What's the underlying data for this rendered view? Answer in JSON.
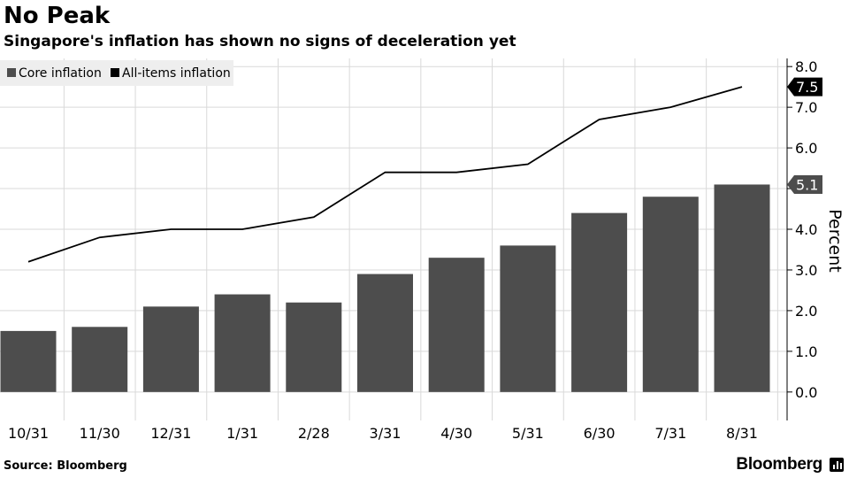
{
  "header": {
    "title": "No Peak",
    "subtitle": "Singapore's inflation has shown no signs of deceleration yet"
  },
  "footer": {
    "source": "Source: Bloomberg",
    "brand": "Bloomberg"
  },
  "colors": {
    "bar": "#4d4d4d",
    "line": "#000000",
    "grid": "#d9d9d9",
    "legend_bg": "#eeeeee"
  },
  "chart_data": {
    "type": "bar",
    "categories": [
      "10/31",
      "11/30",
      "12/31",
      "1/31",
      "2/28",
      "3/31",
      "4/30",
      "5/31",
      "6/30",
      "7/31",
      "8/31"
    ],
    "series": [
      {
        "name": "Core inflation",
        "type": "bar",
        "values": [
          1.5,
          1.6,
          2.1,
          2.4,
          2.2,
          2.9,
          3.3,
          3.6,
          4.4,
          4.8,
          5.1
        ]
      },
      {
        "name": "All-items inflation",
        "type": "line",
        "values": [
          3.2,
          3.8,
          4.0,
          4.0,
          4.3,
          5.4,
          5.4,
          5.6,
          6.7,
          7.0,
          7.5
        ]
      }
    ],
    "last_value_labels": [
      "7.5",
      "5.1"
    ],
    "ylabel": "Percent",
    "ylim": [
      -0.7,
      8.2
    ],
    "yticks": [
      "0.0",
      "1.0",
      "2.0",
      "3.0",
      "4.0",
      "5.0",
      "6.0",
      "7.0",
      "8.0"
    ],
    "y_axis_side": "right",
    "grid": true,
    "legend": "top-left"
  }
}
